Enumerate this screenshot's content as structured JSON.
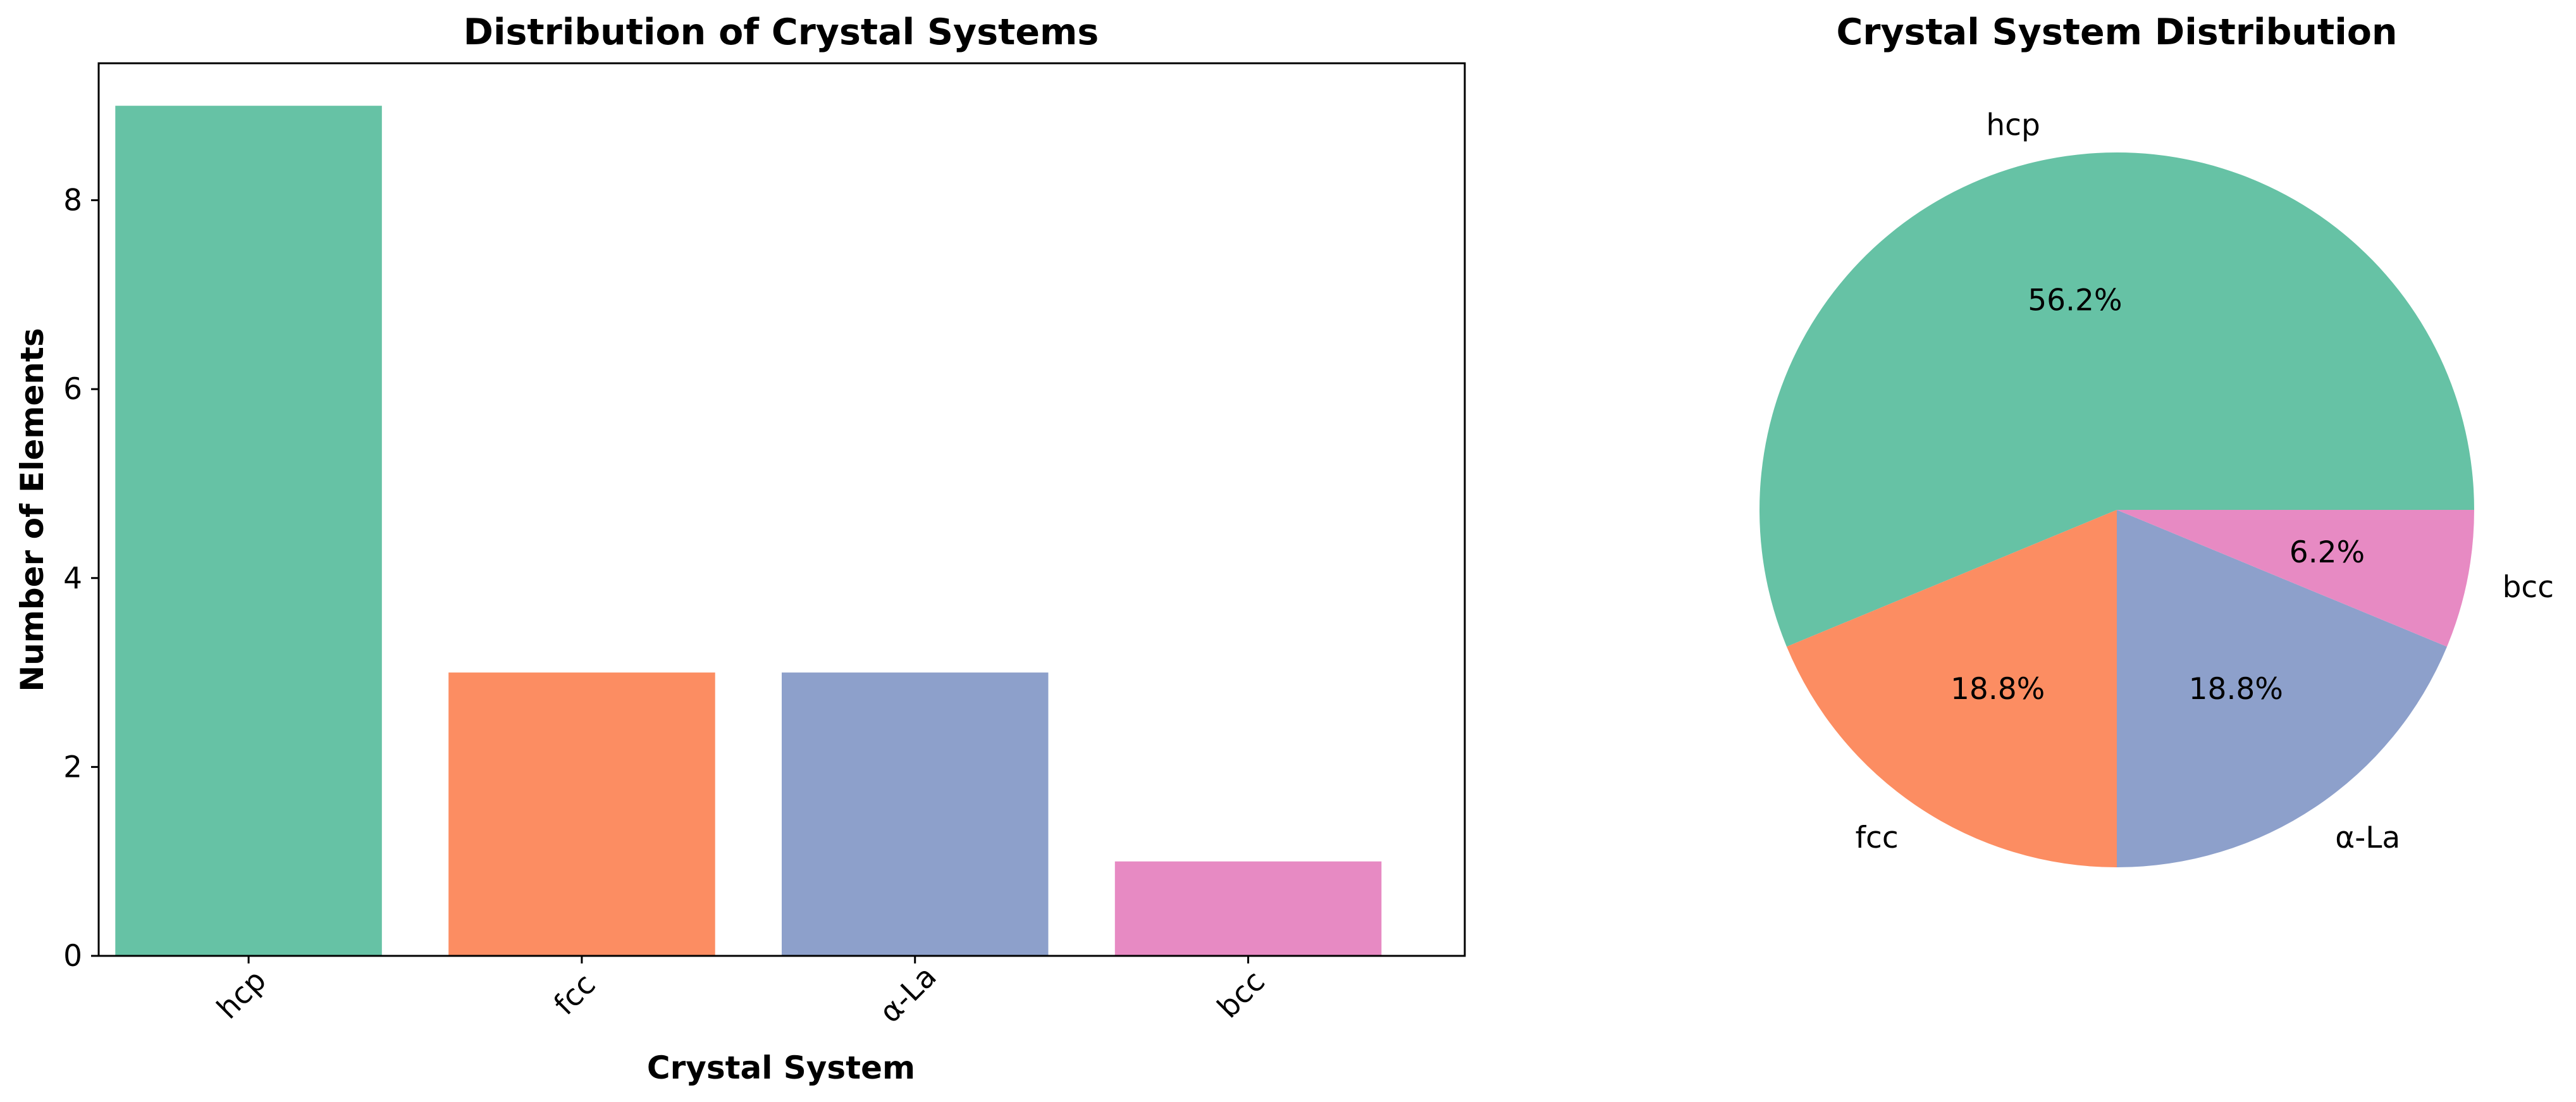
{
  "chart_data": [
    {
      "type": "bar",
      "title": "Distribution of Crystal Systems",
      "xlabel": "Crystal System",
      "ylabel": "Number of Elements",
      "categories": [
        "hcp",
        "fcc",
        "α-La",
        "bcc"
      ],
      "values": [
        9,
        3,
        3,
        1
      ],
      "colors": [
        "#66c2a5",
        "#fc8d62",
        "#8da0cb",
        "#e78ac3"
      ],
      "ylim": [
        0,
        9.45
      ],
      "yticks": [
        0,
        2,
        4,
        6,
        8
      ],
      "grid": false
    },
    {
      "type": "pie",
      "title": "Crystal System Distribution",
      "labels": [
        "hcp",
        "fcc",
        "α-La",
        "bcc"
      ],
      "values": [
        9,
        3,
        3,
        1
      ],
      "percent_labels": [
        "56.2%",
        "18.8%",
        "18.8%",
        "6.2%"
      ],
      "colors": [
        "#66c2a5",
        "#fc8d62",
        "#8da0cb",
        "#e78ac3"
      ]
    }
  ]
}
